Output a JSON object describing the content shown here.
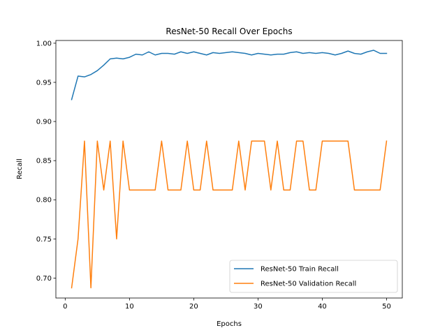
{
  "chart_data": {
    "type": "line",
    "title": "ResNet-50 Recall Over Epochs",
    "xlabel": "Epochs",
    "ylabel": "Recall",
    "xlim": [
      -1.45,
      52.45
    ],
    "ylim": [
      0.6745,
      1.0035
    ],
    "xticks": [
      0,
      10,
      20,
      30,
      40,
      50
    ],
    "yticks": [
      "0.70",
      "0.75",
      "0.80",
      "0.85",
      "0.90",
      "0.95",
      "1.00"
    ],
    "grid": false,
    "legend_position": "lower-right",
    "x": [
      1,
      2,
      3,
      4,
      5,
      6,
      7,
      8,
      9,
      10,
      11,
      12,
      13,
      14,
      15,
      16,
      17,
      18,
      19,
      20,
      21,
      22,
      23,
      24,
      25,
      26,
      27,
      28,
      29,
      30,
      31,
      32,
      33,
      34,
      35,
      36,
      37,
      38,
      39,
      40,
      41,
      42,
      43,
      44,
      45,
      46,
      47,
      48,
      49,
      50
    ],
    "series": [
      {
        "name": "ResNet-50 Train Recall",
        "color": "#1f77b4",
        "values": [
          0.928,
          0.958,
          0.957,
          0.96,
          0.965,
          0.972,
          0.98,
          0.981,
          0.98,
          0.982,
          0.986,
          0.985,
          0.989,
          0.985,
          0.987,
          0.987,
          0.986,
          0.989,
          0.987,
          0.989,
          0.987,
          0.985,
          0.988,
          0.987,
          0.988,
          0.989,
          0.988,
          0.987,
          0.985,
          0.987,
          0.986,
          0.985,
          0.986,
          0.986,
          0.988,
          0.989,
          0.987,
          0.988,
          0.987,
          0.988,
          0.987,
          0.985,
          0.987,
          0.99,
          0.987,
          0.986,
          0.989,
          0.991,
          0.987,
          0.987
        ]
      },
      {
        "name": "ResNet-50 Validation Recall",
        "color": "#ff7f0e",
        "values": [
          0.6875,
          0.75,
          0.875,
          0.6875,
          0.875,
          0.8125,
          0.875,
          0.75,
          0.875,
          0.8125,
          0.8125,
          0.8125,
          0.8125,
          0.8125,
          0.875,
          0.8125,
          0.8125,
          0.8125,
          0.875,
          0.8125,
          0.8125,
          0.875,
          0.8125,
          0.8125,
          0.8125,
          0.8125,
          0.875,
          0.8125,
          0.875,
          0.875,
          0.875,
          0.8125,
          0.875,
          0.8125,
          0.8125,
          0.875,
          0.875,
          0.8125,
          0.8125,
          0.875,
          0.875,
          0.875,
          0.875,
          0.875,
          0.8125,
          0.8125,
          0.8125,
          0.8125,
          0.8125,
          0.875
        ]
      }
    ]
  }
}
